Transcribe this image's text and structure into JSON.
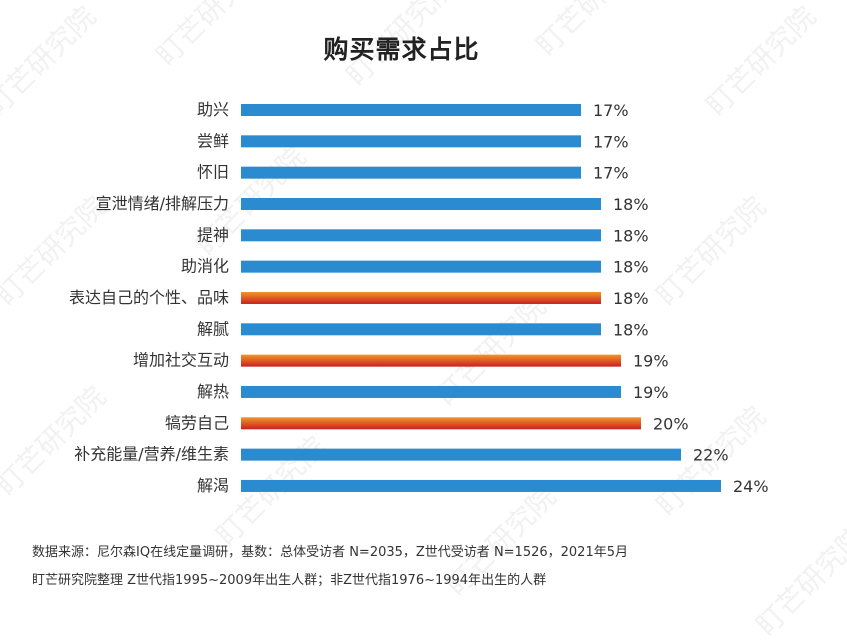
{
  "colors": {
    "bar_blue": "#2a8bd0",
    "bar_highlight_light": "#f1962b",
    "bar_highlight_dark": "#c8211f",
    "text": "#333333"
  },
  "watermark": "盯芒研究院",
  "chart_data": {
    "type": "bar",
    "orientation": "horizontal",
    "title": "购买需求占比",
    "categories": [
      "助兴",
      "尝鲜",
      "怀旧",
      "宣泄情绪/排解压力",
      "提神",
      "助消化",
      "表达自己的个性、品味",
      "解腻",
      "增加社交互动",
      "解热",
      "犒劳自己",
      "补充能量/营养/维生素",
      "解渴"
    ],
    "values": [
      17,
      17,
      17,
      18,
      18,
      18,
      18,
      18,
      19,
      19,
      20,
      22,
      24
    ],
    "value_labels": [
      "17%",
      "17%",
      "17%",
      "18%",
      "18%",
      "18%",
      "18%",
      "18%",
      "19%",
      "19%",
      "20%",
      "22%",
      "24%"
    ],
    "highlighted": [
      false,
      false,
      false,
      false,
      false,
      false,
      true,
      false,
      true,
      false,
      true,
      false,
      false
    ],
    "grid": false,
    "legend": "none"
  },
  "notes": {
    "line1": "数据来源：尼尔森IQ在线定量调研，基数：总体受访者 N=2035，Z世代受访者 N=1526，2021年5月",
    "line2": "盯芒研究院整理  Z世代指1995~2009年出生人群；非Z世代指1976~1994年出生的人群"
  }
}
